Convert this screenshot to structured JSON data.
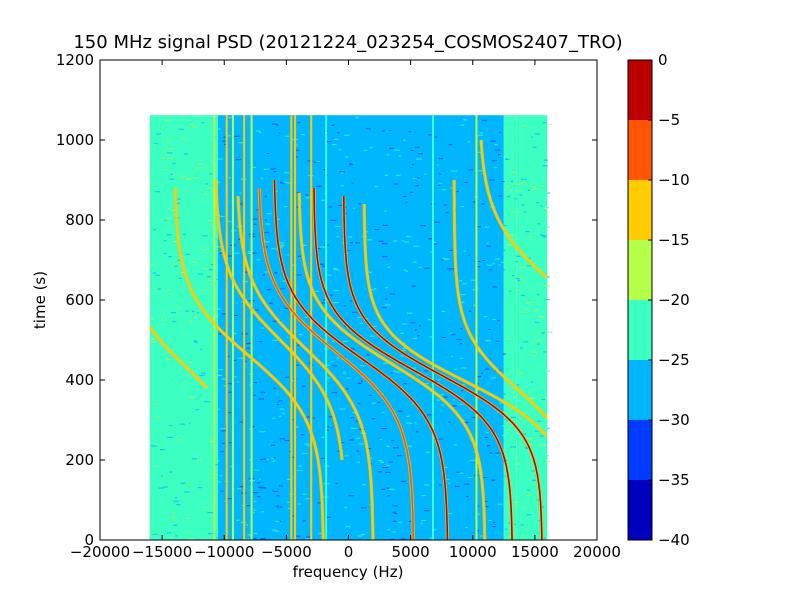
{
  "chart_data": {
    "type": "heatmap",
    "title": "150 MHz signal PSD (20121224_023254_COSMOS2407_TRO)",
    "xlabel": "frequency (Hz)",
    "ylabel": "time (s)",
    "xlim": [
      -20000,
      20000
    ],
    "ylim": [
      0,
      1200
    ],
    "x_ticks": [
      -20000,
      -15000,
      -10000,
      -5000,
      0,
      5000,
      10000,
      15000,
      20000
    ],
    "x_tick_labels": [
      "−20000",
      "−15000",
      "−10000",
      "−5000",
      "0",
      "5000",
      "10000",
      "15000",
      "20000"
    ],
    "y_ticks": [
      0,
      200,
      400,
      600,
      800,
      1000,
      1200
    ],
    "y_tick_labels": [
      "0",
      "200",
      "400",
      "600",
      "800",
      "1000",
      "1200"
    ],
    "data_extent": {
      "freq_min": -16000,
      "freq_max": 16000,
      "time_min": 0,
      "time_max": 1062
    },
    "background_bands": [
      {
        "freq": [
          -16000,
          -13000
        ],
        "level": -22
      },
      {
        "freq": [
          -13000,
          -10500
        ],
        "level": -24
      },
      {
        "freq": [
          -10500,
          12500
        ],
        "level": -27
      },
      {
        "freq": [
          12500,
          13500
        ],
        "level": -24
      },
      {
        "freq": [
          13500,
          16000
        ],
        "level": -22
      }
    ],
    "vertical_lines": [
      {
        "freq": -10800,
        "level": -17
      },
      {
        "freq": -9800,
        "level": -14
      },
      {
        "freq": -9300,
        "level": -16
      },
      {
        "freq": -8400,
        "level": -14
      },
      {
        "freq": -7800,
        "level": -18
      },
      {
        "freq": -4600,
        "level": -15
      },
      {
        "freq": -4300,
        "level": -12
      },
      {
        "freq": -3000,
        "level": -15
      },
      {
        "freq": -1800,
        "level": -21
      },
      {
        "freq": 6800,
        "level": -23
      },
      {
        "freq": 10300,
        "level": -20
      }
    ],
    "doppler_tracks": [
      {
        "f0": -5500,
        "df": 10500,
        "t0": 500,
        "tau": 165,
        "level": -14,
        "t_range": [
          200,
          900
        ]
      },
      {
        "f0": -3500,
        "df": 11000,
        "t0": 480,
        "tau": 165,
        "level": -12,
        "t_range": [
          0,
          860
        ]
      },
      {
        "f0": -1000,
        "df": 12500,
        "t0": 470,
        "tau": 160,
        "level": -8,
        "t_range": [
          0,
          880
        ]
      },
      {
        "f0": 1000,
        "df": 14000,
        "t0": 455,
        "tau": 155,
        "level": -3,
        "t_range": [
          0,
          900
        ]
      },
      {
        "f0": 3500,
        "df": 15000,
        "t0": 440,
        "tau": 145,
        "level": -12,
        "t_range": [
          0,
          870
        ]
      },
      {
        "f0": 5200,
        "df": 16000,
        "t0": 425,
        "tau": 140,
        "level": -5,
        "t_range": [
          0,
          880
        ]
      },
      {
        "f0": 7600,
        "df": 16000,
        "t0": 410,
        "tau": 135,
        "level": -3,
        "t_range": [
          0,
          860
        ]
      },
      {
        "f0": 9500,
        "df": 16500,
        "t0": 395,
        "tau": 130,
        "level": -12,
        "t_range": [
          0,
          840
        ]
      },
      {
        "f0": -13000,
        "df": 10000,
        "t0": 430,
        "tau": 150,
        "level": -14,
        "t_range": [
          380,
          880
        ]
      },
      {
        "f0": -8000,
        "df": 12000,
        "t0": 460,
        "tau": 160,
        "level": -14,
        "t_range": [
          0,
          880
        ]
      },
      {
        "f0": 13500,
        "df": 10000,
        "t0": 380,
        "tau": 140,
        "level": -14,
        "t_range": [
          300,
          900
        ]
      },
      {
        "f0": 16500,
        "df": 12000,
        "t0": 640,
        "tau": 170,
        "level": -14,
        "t_range": [
          600,
          1000
        ]
      }
    ],
    "colorbar": {
      "min": -40,
      "max": 0,
      "ticks": [
        0,
        -5,
        -10,
        -15,
        -20,
        -25,
        -30,
        -35,
        -40
      ],
      "tick_labels": [
        "0",
        "−5",
        "−10",
        "−15",
        "−20",
        "−25",
        "−30",
        "−35",
        "−40"
      ],
      "levels": [
        {
          "range": [
            -40,
            -35
          ],
          "color": "#0000bf"
        },
        {
          "range": [
            -35,
            -30
          ],
          "color": "#003cff"
        },
        {
          "range": [
            -30,
            -25
          ],
          "color": "#00b6ff"
        },
        {
          "range": [
            -25,
            -20
          ],
          "color": "#3cffc2"
        },
        {
          "range": [
            -20,
            -15
          ],
          "color": "#b6ff48"
        },
        {
          "range": [
            -15,
            -10
          ],
          "color": "#ffcc00"
        },
        {
          "range": [
            -10,
            -5
          ],
          "color": "#ff5500"
        },
        {
          "range": [
            -5,
            0
          ],
          "color": "#bf0000"
        }
      ]
    },
    "grid": false,
    "legend": "none"
  }
}
